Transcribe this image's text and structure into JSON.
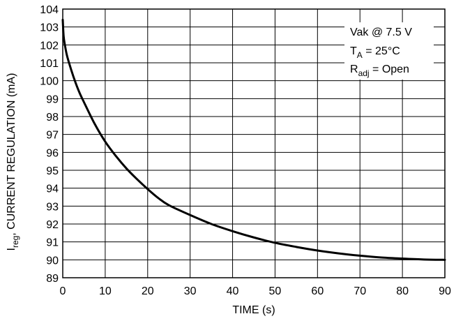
{
  "chart_data": {
    "type": "line",
    "title": "",
    "xlabel": "TIME (s)",
    "ylabel": {
      "prefix": "I",
      "subscript": "reg",
      "suffix": ", CURRENT REGULATION (mA)"
    },
    "xlim": [
      0,
      90
    ],
    "ylim": [
      89,
      104
    ],
    "x_ticks": [
      0,
      10,
      20,
      30,
      40,
      50,
      60,
      70,
      80,
      90
    ],
    "y_ticks": [
      89,
      90,
      91,
      92,
      93,
      94,
      95,
      96,
      97,
      98,
      99,
      100,
      101,
      102,
      103,
      104
    ],
    "grid": true,
    "legend_position": "top-right",
    "conditions": [
      {
        "main": "Vak @ 7.5 V",
        "sub": "",
        "rest": ""
      },
      {
        "main": "T",
        "sub": "A",
        "rest": " = 25°C"
      },
      {
        "main": "R",
        "sub": "adj",
        "rest": " = Open"
      }
    ],
    "series": [
      {
        "x": [
          0,
          0.2,
          0.5,
          1,
          2,
          3,
          4,
          5,
          7.5,
          10,
          12.5,
          15,
          17.5,
          20,
          22.5,
          25,
          30,
          35,
          40,
          45,
          50,
          55,
          60,
          65,
          70,
          75,
          80,
          85,
          90
        ],
        "y": [
          103.4,
          102.5,
          102.0,
          101.4,
          100.6,
          99.9,
          99.3,
          98.8,
          97.6,
          96.6,
          95.8,
          95.1,
          94.5,
          93.95,
          93.45,
          93.05,
          92.5,
          92.0,
          91.6,
          91.25,
          90.95,
          90.72,
          90.52,
          90.36,
          90.23,
          90.13,
          90.07,
          90.02,
          90.0
        ],
        "color": "#000000"
      }
    ]
  }
}
